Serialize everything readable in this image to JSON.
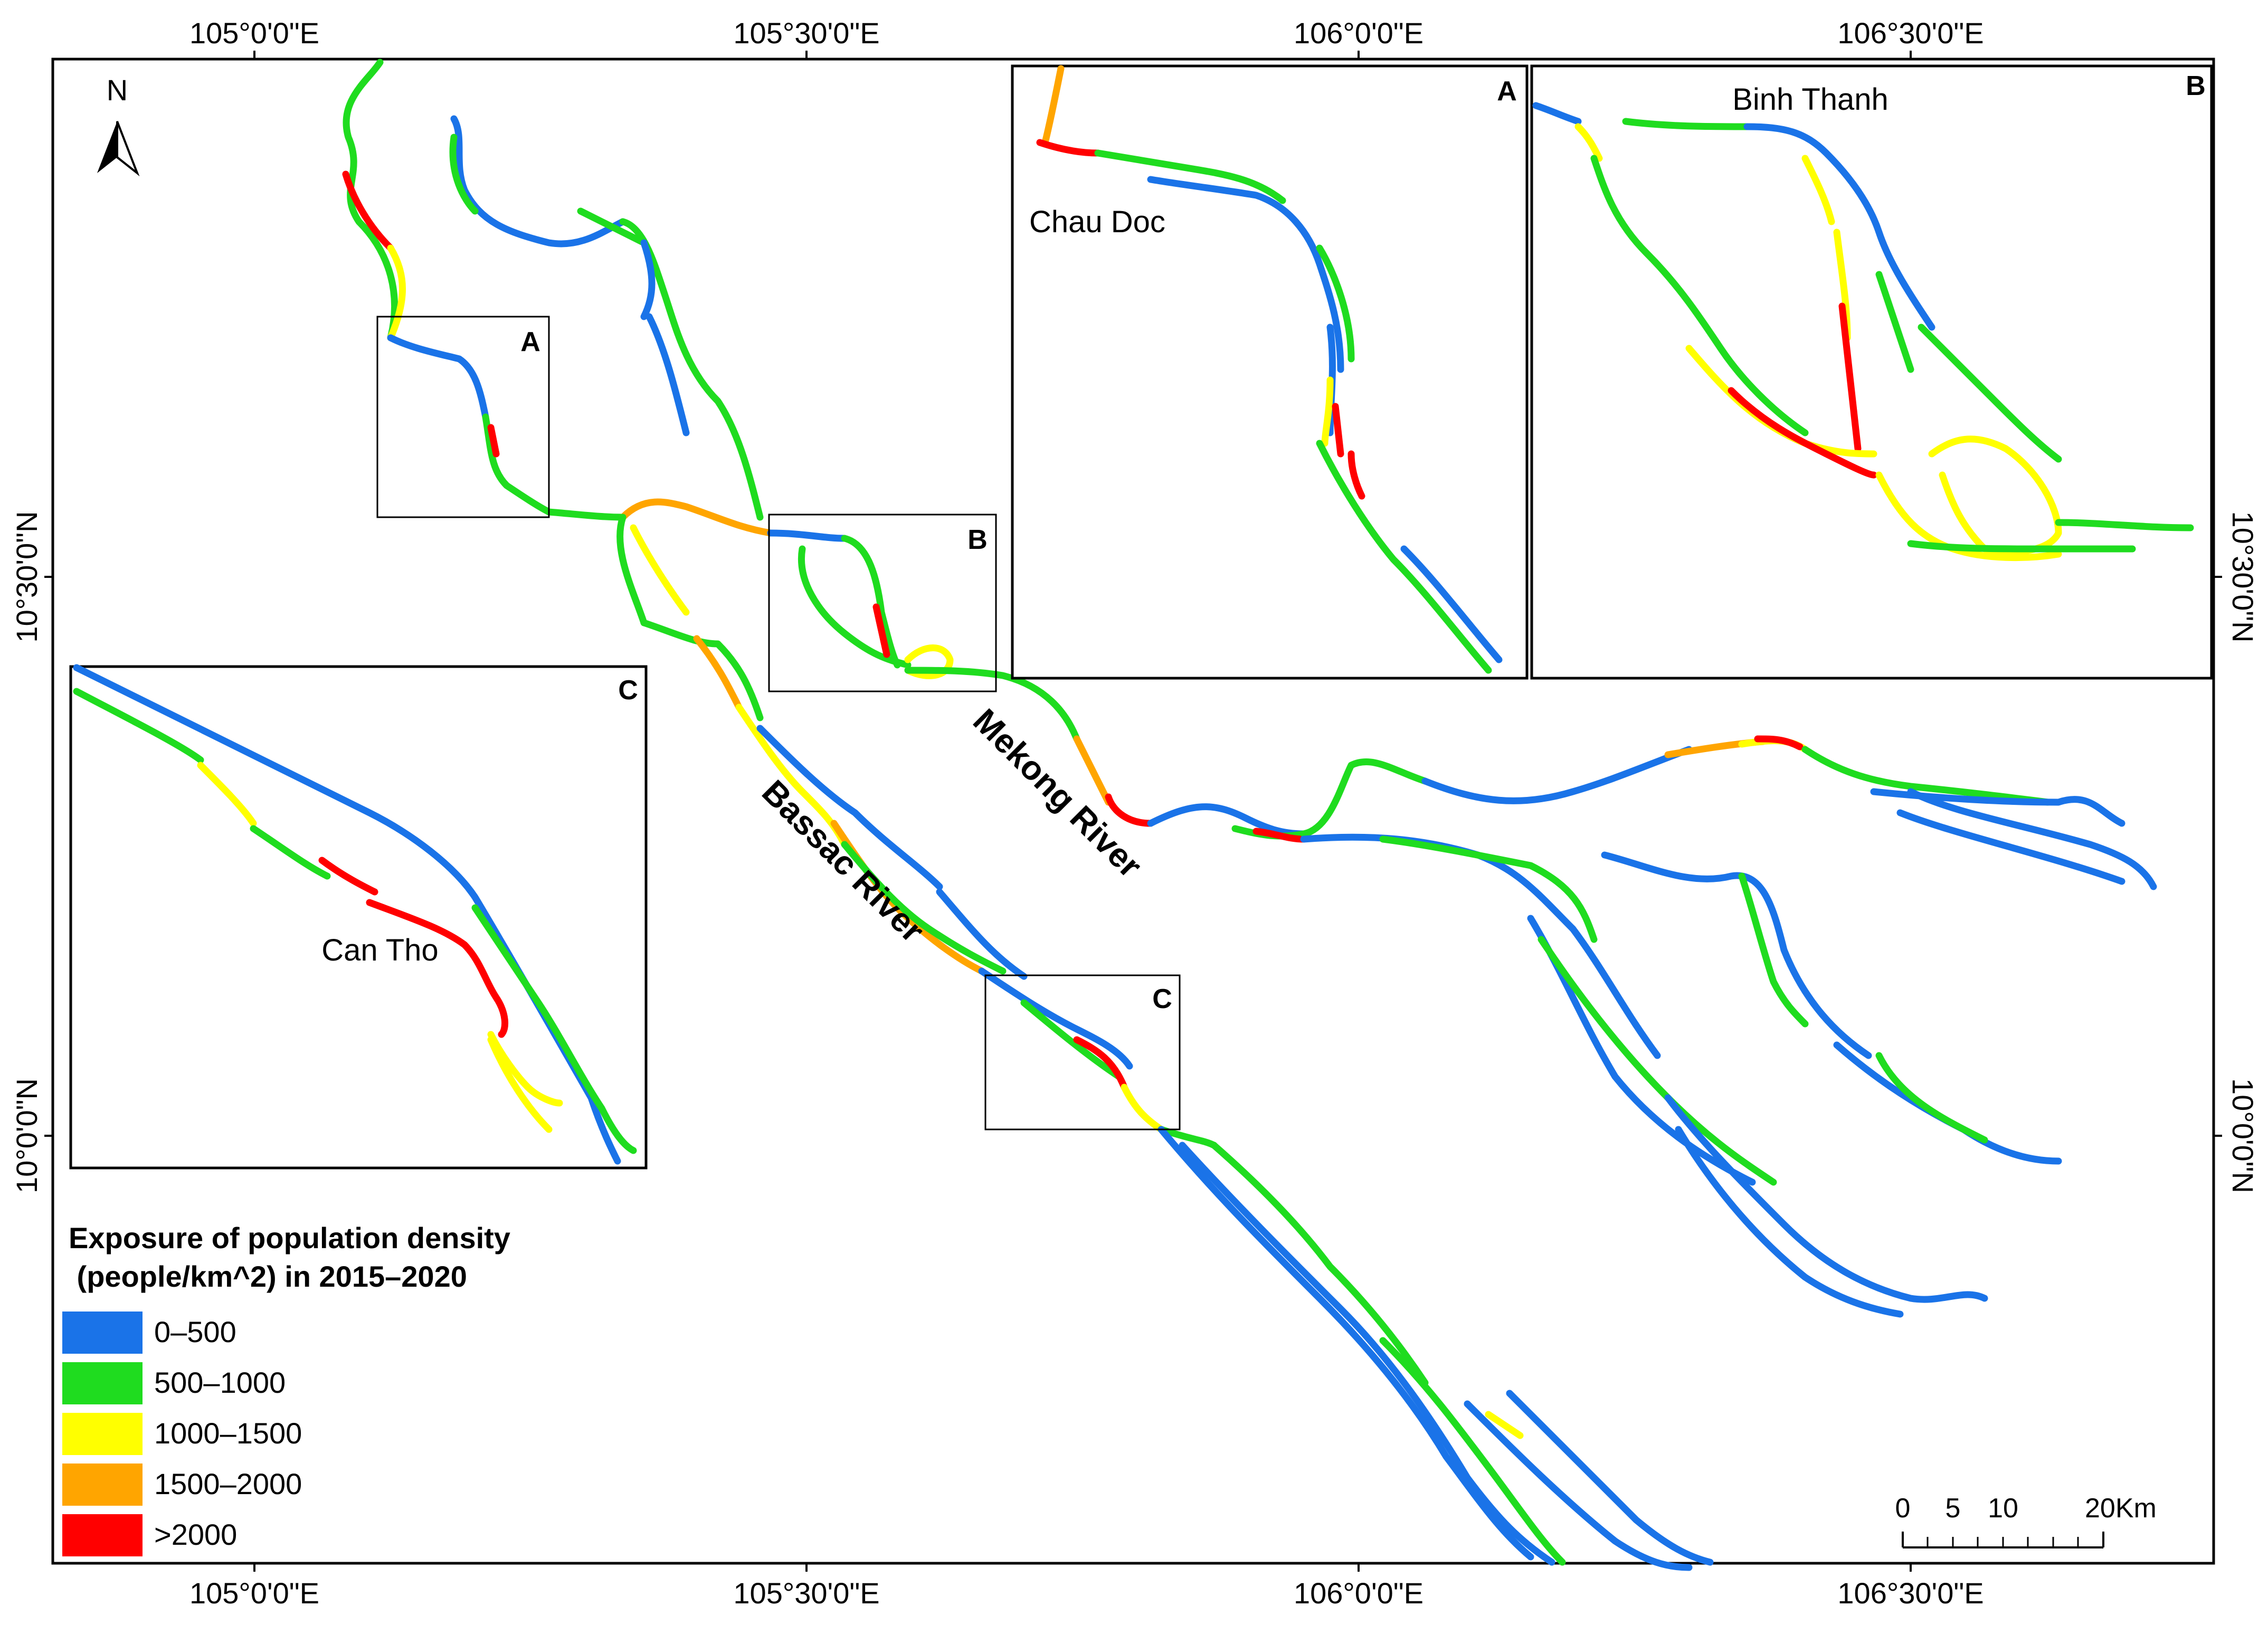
{
  "map": {
    "longitude_ticks_top": [
      "105°0'0\"E",
      "105°30'0\"E",
      "106°0'0\"E",
      "106°30'0\"E"
    ],
    "longitude_ticks_bottom": [
      "105°0'0\"E",
      "105°30'0\"E",
      "106°0'0\"E",
      "106°30'0\"E"
    ],
    "latitude_ticks_left": [
      "10°30'0\"N",
      "10°0'0\"N"
    ],
    "latitude_ticks_right": [
      "10°30'0\"N",
      "10°0'0\"N"
    ],
    "north_arrow_label": "N",
    "rivers": {
      "mekong": "Mekong River",
      "bassac": "Bassac River"
    },
    "insets": {
      "A": {
        "letter": "A",
        "place": "Chau Doc"
      },
      "B": {
        "letter": "B",
        "place": "Binh Thanh"
      },
      "C": {
        "letter": "C",
        "place": "Can Tho"
      }
    },
    "extent_labels": {
      "A": "A",
      "B": "B",
      "C": "C"
    },
    "legend": {
      "title_line1": "Exposure of population density",
      "title_line2": " (people/km^2) in 2015–2020",
      "classes": [
        {
          "label": "0–500",
          "color": "#1a73e8"
        },
        {
          "label": "500–1000",
          "color": "#1fdc1f"
        },
        {
          "label": "1000–1500",
          "color": "#ffff00"
        },
        {
          "label": "1500–2000",
          "color": "#ffa500"
        },
        {
          "label": ">2000",
          "color": "#ff0000"
        }
      ]
    },
    "scale_bar": {
      "labels": [
        "0",
        "5",
        "10",
        "20Km"
      ]
    }
  }
}
